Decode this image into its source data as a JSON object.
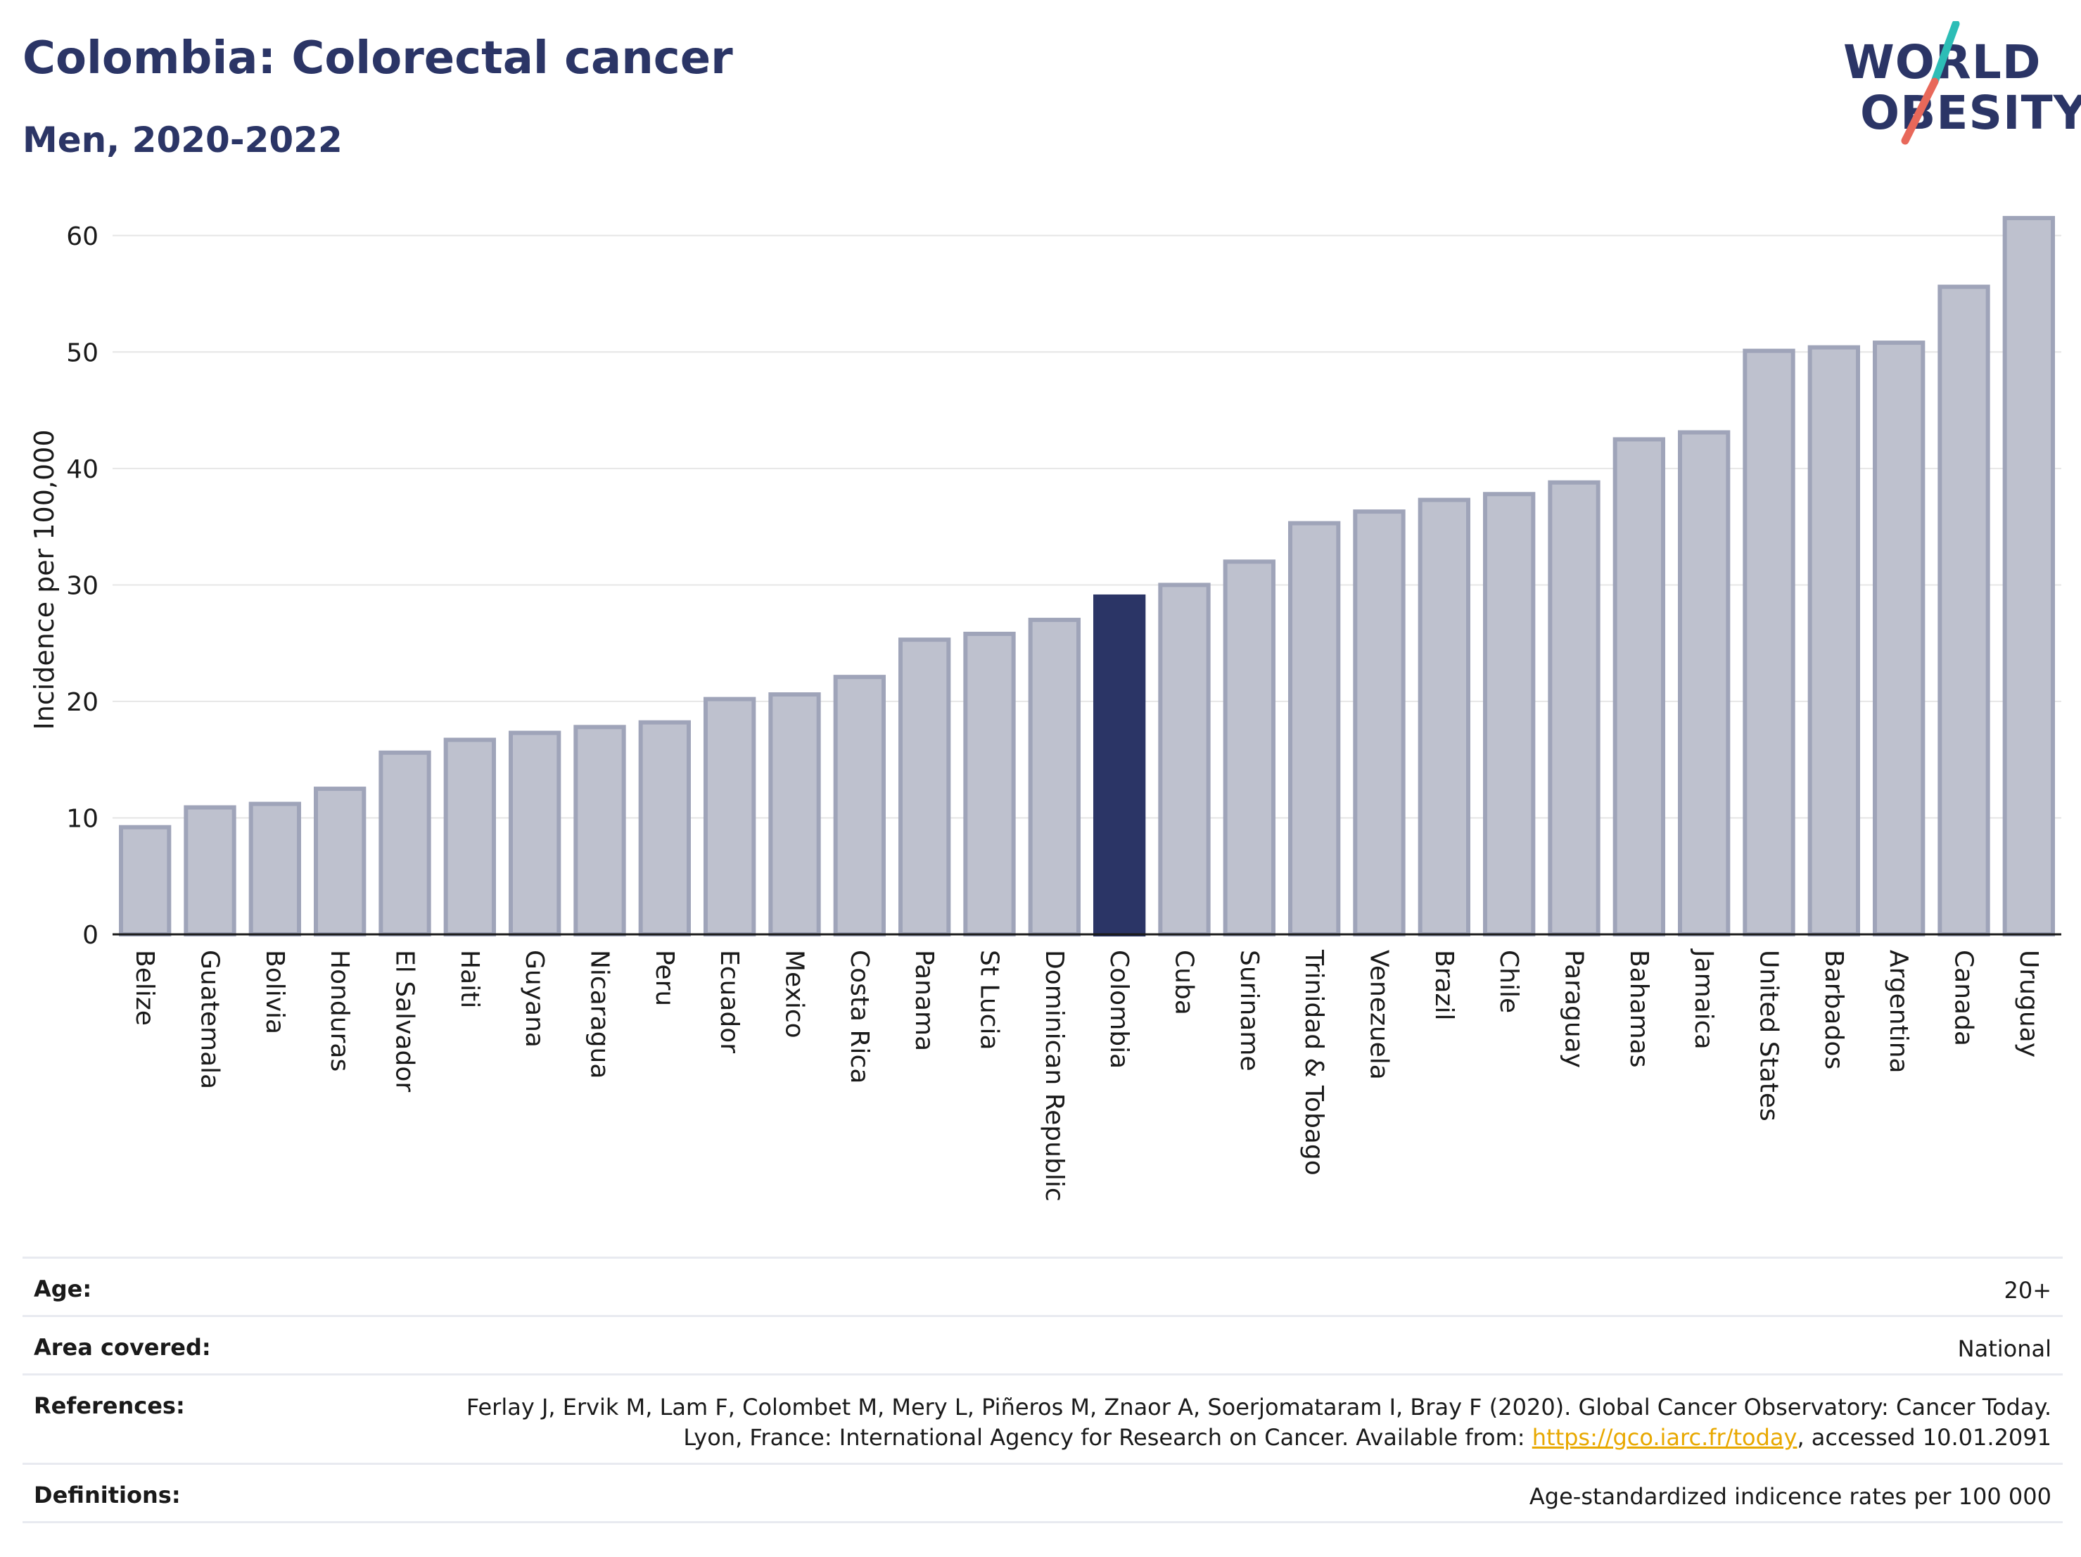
{
  "header": {
    "title": "Colombia: Colorectal cancer",
    "subtitle": "Men, 2020-2022"
  },
  "logo": {
    "line1": "WORLD",
    "line2": "OBESITY",
    "accent_color": "#2dbdb6",
    "accent_color_2": "#e8685a"
  },
  "chart_data": {
    "type": "bar",
    "title": "Colombia: Colorectal cancer",
    "subtitle": "Men, 2020-2022",
    "ylabel": "Incidence per 100,000",
    "ylim": [
      0,
      65
    ],
    "yticks": [
      0,
      10,
      20,
      30,
      40,
      50,
      60
    ],
    "grid": true,
    "highlight": "Colombia",
    "colors": {
      "default": "#bec1ce",
      "default_edge": "#9fa4b9",
      "highlight": "#2b3566"
    },
    "categories": [
      "Belize",
      "Guatemala",
      "Bolivia",
      "Honduras",
      "El Salvador",
      "Haiti",
      "Guyana",
      "Nicaragua",
      "Peru",
      "Ecuador",
      "Mexico",
      "Costa Rica",
      "Panama",
      "St Lucia",
      "Dominican Republic",
      "Colombia",
      "Cuba",
      "Suriname",
      "Trinidad & Tobago",
      "Venezuela",
      "Brazil",
      "Chile",
      "Paraguay",
      "Bahamas",
      "Jamaica",
      "United States",
      "Barbados",
      "Argentina",
      "Canada",
      "Uruguay"
    ],
    "values": [
      9.2,
      10.9,
      11.2,
      12.5,
      15.6,
      16.7,
      17.3,
      17.8,
      18.2,
      20.2,
      20.6,
      22.1,
      25.3,
      25.8,
      27.0,
      29.0,
      30.0,
      32.0,
      35.3,
      36.3,
      37.3,
      37.8,
      38.8,
      42.5,
      43.1,
      50.1,
      50.4,
      50.8,
      55.6,
      61.5
    ]
  },
  "info": {
    "age_label": "Age:",
    "age_value": "20+",
    "area_label": "Area covered:",
    "area_value": "National",
    "references_label": "References:",
    "references_text_1": "Ferlay J, Ervik M, Lam F, Colombet M, Mery L, Piñeros M, Znaor A, Soerjomataram I, Bray F (2020). Global Cancer Observatory: Cancer Today. Lyon, France: International Agency for Research on Cancer. Available from: ",
    "references_link": "https://gco.iarc.fr/today",
    "references_text_2": ", accessed 10.01.2091",
    "definitions_label": "Definitions:",
    "definitions_value": "Age-standardized indicence rates per 100 000"
  }
}
